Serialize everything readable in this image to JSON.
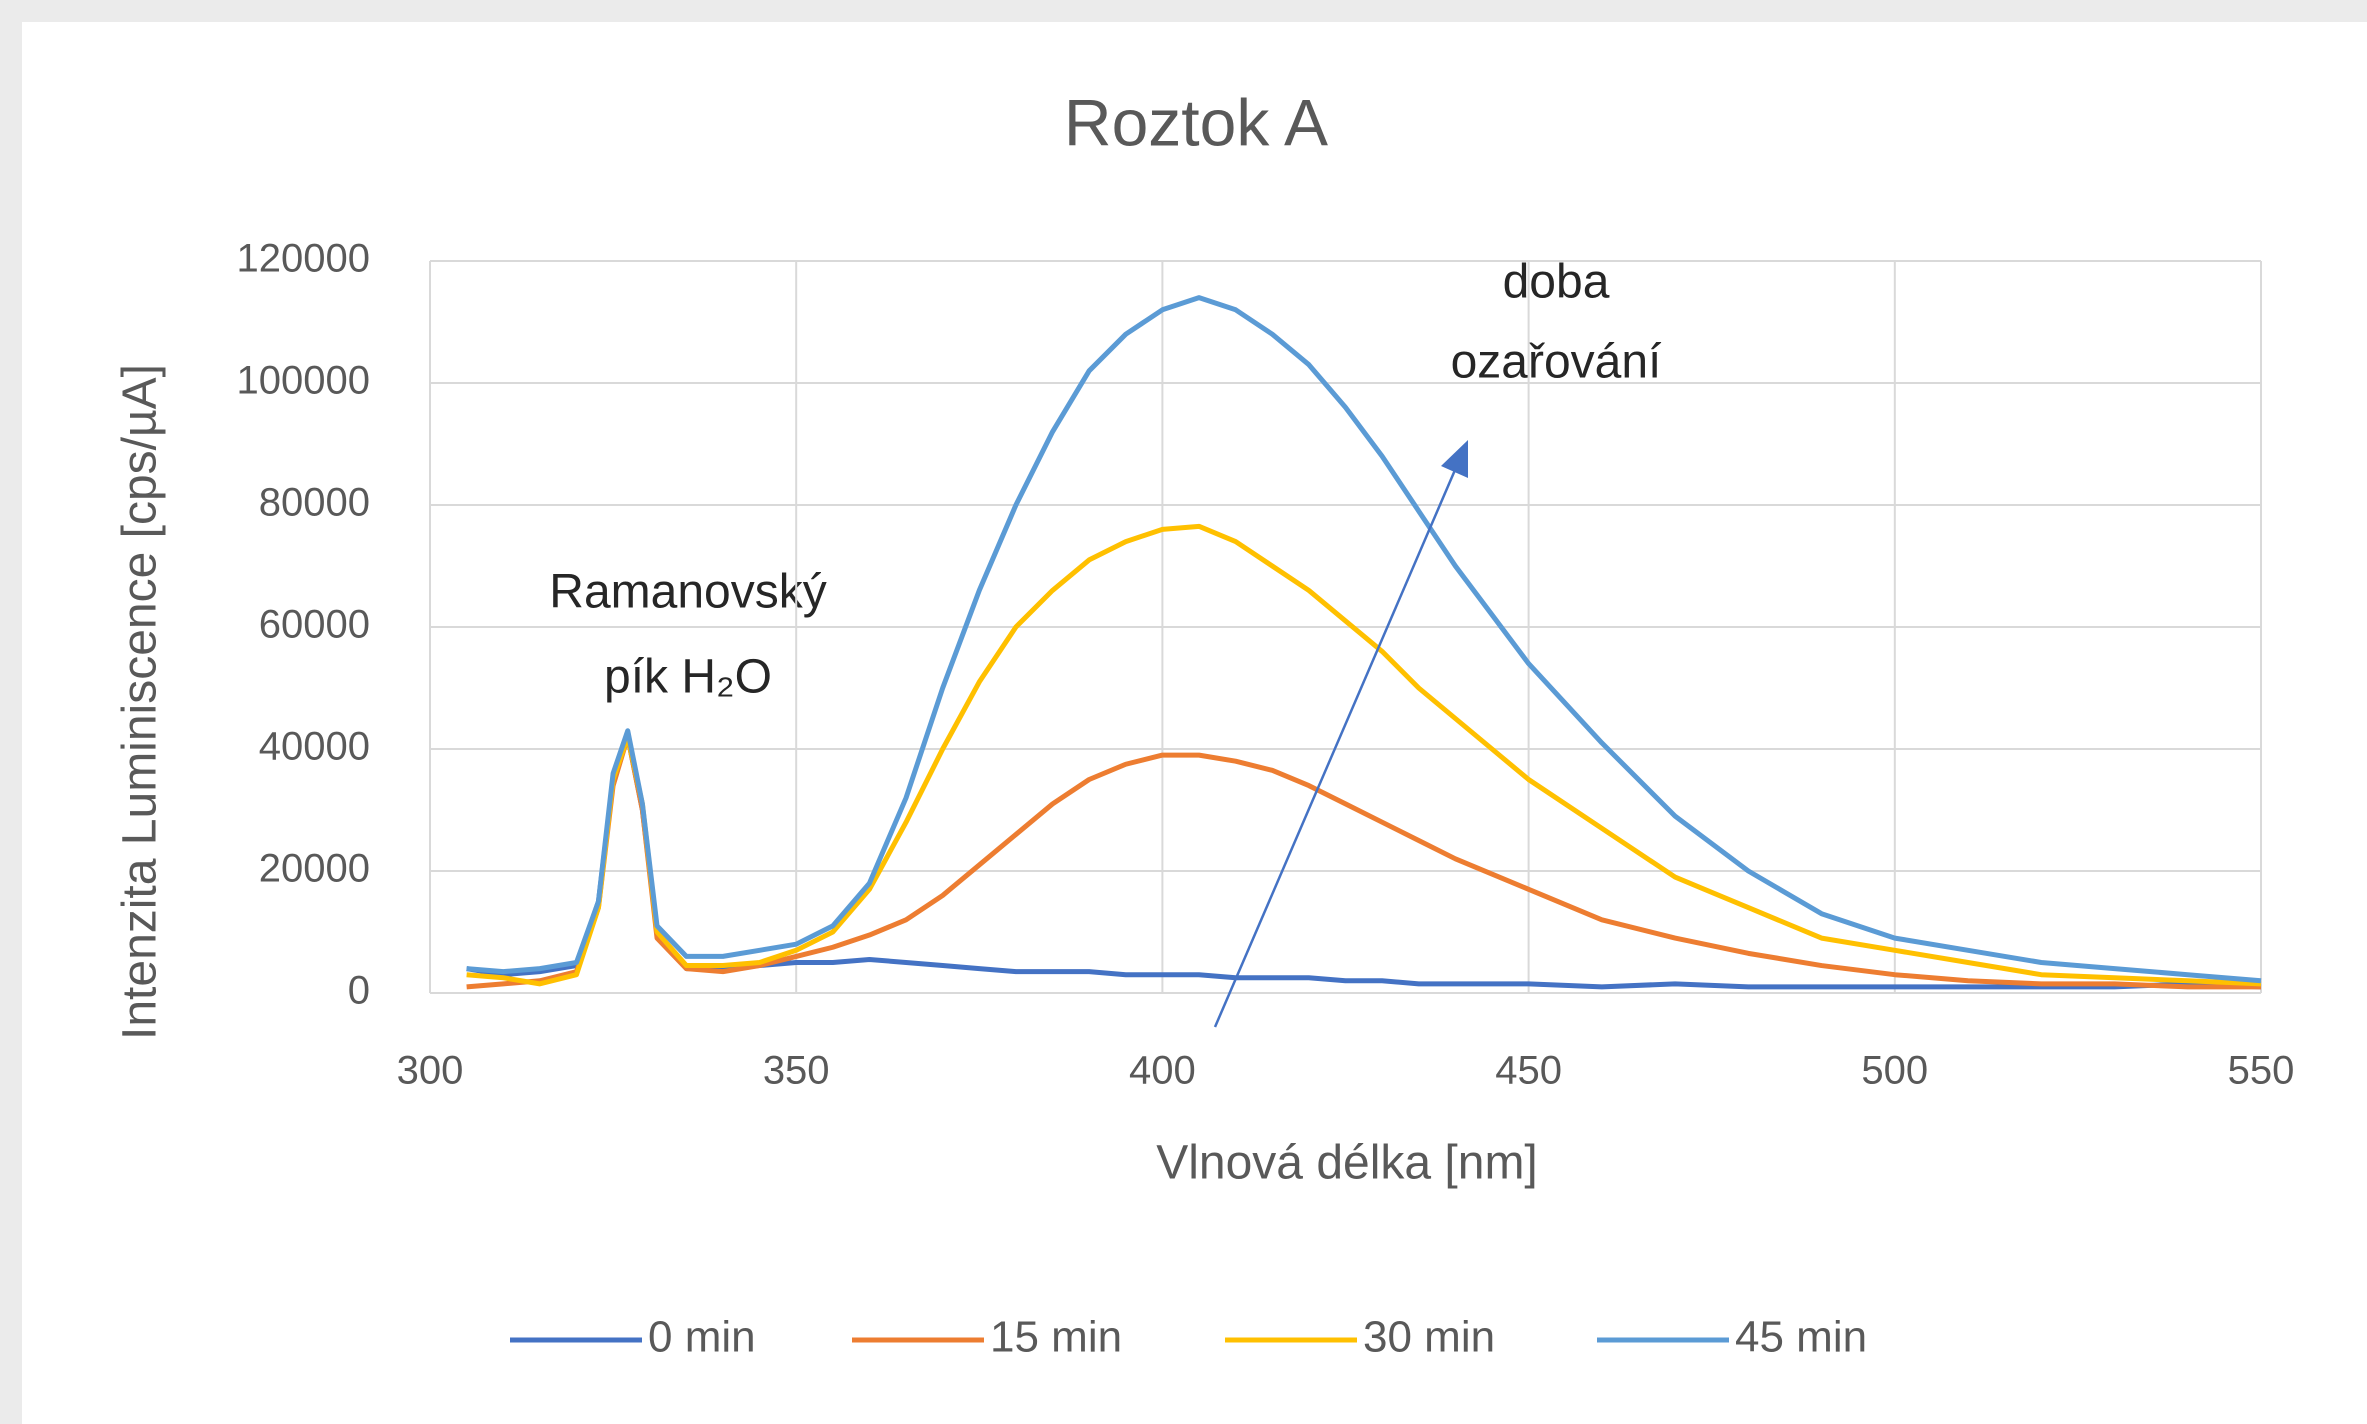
{
  "chart_data": {
    "type": "line",
    "title": "Roztok A",
    "x_label": "Vlnová délka [nm]",
    "y_label": "Intenzita Luminiscence [cps/µA]",
    "annotations": [
      "Ramanovský",
      "pík H₂O",
      "doba",
      "ozařování"
    ],
    "x": [
      305,
      310,
      315,
      320,
      323,
      325,
      327,
      329,
      331,
      335,
      340,
      345,
      350,
      355,
      360,
      365,
      370,
      375,
      380,
      385,
      390,
      395,
      400,
      405,
      410,
      415,
      420,
      425,
      430,
      435,
      440,
      445,
      450,
      460,
      470,
      480,
      490,
      500,
      510,
      520,
      530,
      540,
      550
    ],
    "series": [
      {
        "name": "0 min",
        "color": "#4472c4",
        "values": [
          4000,
          3000,
          3500,
          4500,
          15000,
          35000,
          42000,
          30000,
          10000,
          4000,
          4000,
          4500,
          5000,
          5000,
          5500,
          5000,
          4500,
          4000,
          3500,
          3500,
          3500,
          3000,
          3000,
          3000,
          2500,
          2500,
          2500,
          2000,
          2000,
          1500,
          1500,
          1500,
          1500,
          1000,
          1500,
          1000,
          1000,
          1000,
          1000,
          1000,
          1000,
          1500,
          1000
        ]
      },
      {
        "name": "15 min",
        "color": "#ed7d31",
        "values": [
          1000,
          1500,
          2000,
          3500,
          14000,
          34000,
          42000,
          30000,
          9000,
          4000,
          3500,
          4500,
          6000,
          7500,
          9500,
          12000,
          16000,
          21000,
          26000,
          31000,
          35000,
          37500,
          39000,
          39000,
          38000,
          36500,
          34000,
          31000,
          28000,
          25000,
          22000,
          19500,
          17000,
          12000,
          9000,
          6500,
          4500,
          3000,
          2000,
          1500,
          1500,
          1000,
          1000
        ]
      },
      {
        "name": "30 min",
        "color": "#ffc000",
        "values": [
          3000,
          2500,
          1500,
          3000,
          14000,
          35000,
          42000,
          31000,
          10000,
          4500,
          4500,
          5000,
          7000,
          10000,
          17000,
          28000,
          40000,
          51000,
          60000,
          66000,
          71000,
          74000,
          76000,
          76500,
          74000,
          70000,
          66000,
          61000,
          56000,
          50000,
          45000,
          40000,
          35000,
          27000,
          19000,
          14000,
          9000,
          7000,
          5000,
          3000,
          2500,
          2000,
          1500
        ]
      },
      {
        "name": "45 min",
        "color": "#5b9bd5",
        "values": [
          4000,
          3500,
          4000,
          5000,
          15000,
          36000,
          43000,
          31000,
          11000,
          6000,
          6000,
          7000,
          8000,
          11000,
          18000,
          32000,
          50000,
          66000,
          80000,
          92000,
          102000,
          108000,
          112000,
          114000,
          112000,
          108000,
          103000,
          96000,
          88000,
          79000,
          70000,
          62000,
          54000,
          41000,
          29000,
          20000,
          13000,
          9000,
          7000,
          5000,
          4000,
          3000,
          2000
        ]
      }
    ],
    "xlim": [
      300,
      550
    ],
    "xticks": [
      300,
      350,
      400,
      450,
      500,
      550
    ],
    "ylim": [
      0,
      120000
    ],
    "yticks": [
      0,
      20000,
      40000,
      60000,
      80000,
      100000,
      120000
    ],
    "grid": true,
    "legend": "bottom"
  }
}
